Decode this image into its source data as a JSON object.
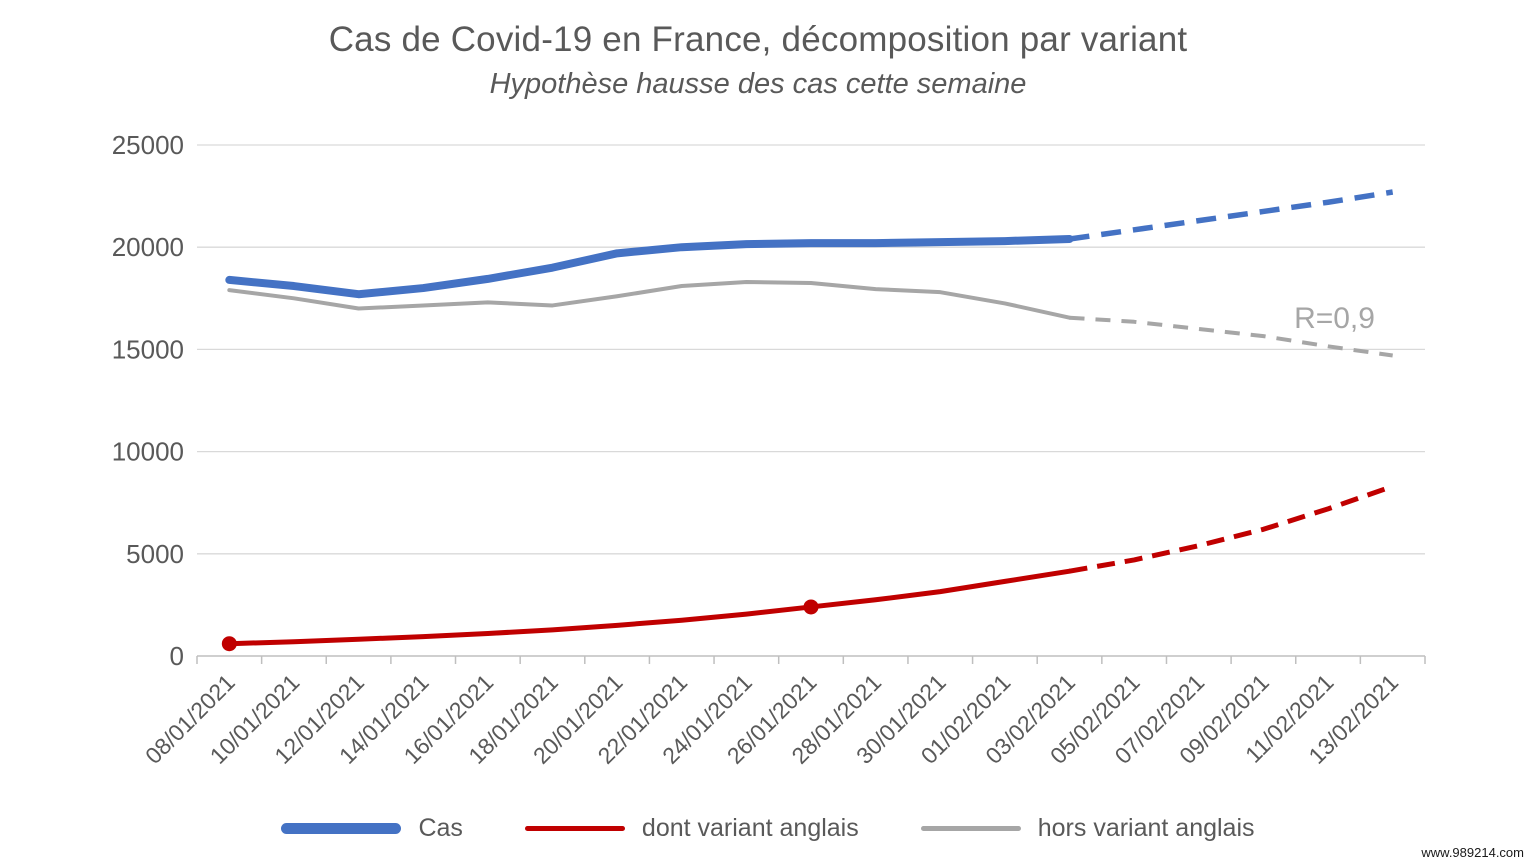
{
  "page": {
    "watermark": "www.989214.com"
  },
  "chart_data": {
    "type": "line",
    "title": "Cas de Covid-19 en France, décomposition par variant",
    "subtitle": "Hypothèse hausse des cas cette semaine",
    "x_labels": [
      "08/01/2021",
      "10/01/2021",
      "12/01/2021",
      "14/01/2021",
      "16/01/2021",
      "18/01/2021",
      "20/01/2021",
      "22/01/2021",
      "24/01/2021",
      "26/01/2021",
      "28/01/2021",
      "30/01/2021",
      "01/02/2021",
      "03/02/2021",
      "05/02/2021",
      "07/02/2021",
      "09/02/2021",
      "11/02/2021",
      "13/02/2021"
    ],
    "ylim": [
      0,
      25000
    ],
    "y_ticks": [
      0,
      5000,
      10000,
      15000,
      20000,
      25000
    ],
    "grid": "horizontal-only",
    "legend_position": "bottom",
    "solid_until_index": 13,
    "dashed_note": "values after 03/02/2021 are projections drawn dashed",
    "annotation": {
      "text": "R=0,9",
      "x_index": 17.1,
      "y_value": 16050,
      "color": "#a6a6a6"
    },
    "draw_order": [
      2,
      0,
      1
    ],
    "series": [
      {
        "name": "Cas",
        "color": "#4472C4",
        "line_width": 8,
        "dash_width": 5.5,
        "dash_pattern": "20 12",
        "marker_indices": [],
        "values": [
          18400,
          18100,
          17700,
          18000,
          18450,
          19000,
          19700,
          20000,
          20150,
          20200,
          20200,
          20250,
          20300,
          20400,
          20850,
          21300,
          21750,
          22200,
          22700
        ]
      },
      {
        "name": "dont variant anglais",
        "color": "#C00000",
        "line_width": 5,
        "dash_width": 5,
        "dash_pattern": "18 10",
        "marker_indices": [
          0,
          9
        ],
        "values": [
          600,
          700,
          820,
          950,
          1100,
          1280,
          1500,
          1750,
          2050,
          2400,
          2750,
          3150,
          3650,
          4150,
          4700,
          5400,
          6200,
          7200,
          8300
        ]
      },
      {
        "name": "hors variant anglais",
        "color": "#A6A6A6",
        "line_width": 4,
        "dash_width": 4,
        "dash_pattern": "15 11",
        "marker_indices": [],
        "values": [
          17900,
          17500,
          17000,
          17150,
          17300,
          17150,
          17600,
          18100,
          18300,
          18250,
          17950,
          17800,
          17250,
          16550,
          16350,
          16000,
          15650,
          15150,
          14700
        ]
      }
    ],
    "axis_colors": {
      "grid": "#d9d9d9",
      "axis": "#bfbfbf",
      "tick_text": "#595959"
    }
  }
}
